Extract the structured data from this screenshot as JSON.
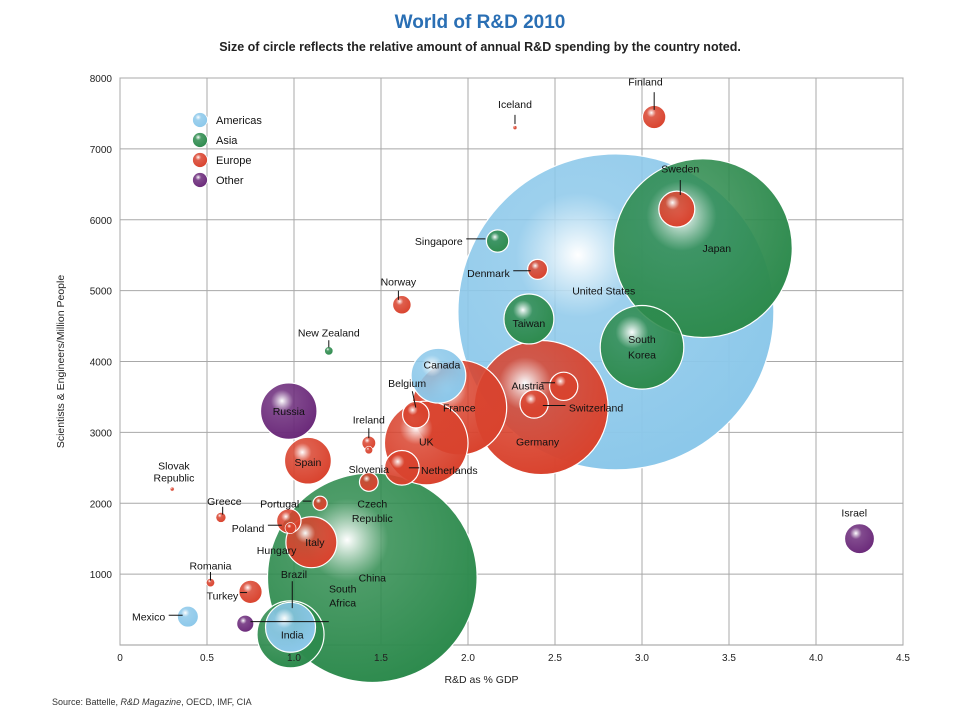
{
  "title": "World of R&D 2010",
  "subtitle": "Size of circle reflects the relative amount of annual R&D spending by the country noted.",
  "source": {
    "prefix": "Source: Battelle, ",
    "italic": "R&D Magazine",
    "suffix": ", OECD, IMF, CIA"
  },
  "colors": {
    "Americas": "#8cc8ea",
    "Asia": "#2e8b4e",
    "Europe": "#d9432e",
    "Other": "#6b2a7a"
  },
  "chart_data": {
    "type": "bubble",
    "title": "World of R&D 2010",
    "xlabel": "R&D as % GDP",
    "ylabel": "Scientists & Engineers/Million People",
    "xlim": [
      0,
      4.5
    ],
    "ylim": [
      0,
      8000
    ],
    "xticks": [
      "0",
      "0.5",
      "1.0",
      "1.5",
      "2.0",
      "2.5",
      "3.0",
      "3.5",
      "4.0",
      "4.5"
    ],
    "yticks": [
      "1000",
      "2000",
      "3000",
      "4000",
      "5000",
      "6000",
      "7000",
      "8000"
    ],
    "grid": true,
    "legend": {
      "position": "top-left",
      "entries": [
        "Americas",
        "Asia",
        "Europe",
        "Other"
      ]
    },
    "points": [
      {
        "name": "United States",
        "group": "Americas",
        "x": 2.85,
        "y": 4700,
        "size": 100
      },
      {
        "name": "Japan",
        "group": "Asia",
        "x": 3.35,
        "y": 5600,
        "size": 32
      },
      {
        "name": "China",
        "group": "Asia",
        "x": 1.45,
        "y": 950,
        "size": 44
      },
      {
        "name": "Germany",
        "group": "Europe",
        "x": 2.42,
        "y": 3350,
        "size": 18
      },
      {
        "name": "France",
        "group": "Europe",
        "x": 1.95,
        "y": 3350,
        "size": 9
      },
      {
        "name": "UK",
        "group": "Europe",
        "x": 1.76,
        "y": 2850,
        "size": 7
      },
      {
        "name": "South Korea",
        "group": "Asia",
        "x": 3.0,
        "y": 4200,
        "size": 7
      },
      {
        "name": "Canada",
        "group": "Americas",
        "x": 1.83,
        "y": 3800,
        "size": 3
      },
      {
        "name": "India",
        "group": "Asia",
        "x": 0.98,
        "y": 150,
        "size": 4.5
      },
      {
        "name": "Brazil",
        "group": "Americas",
        "x": 0.98,
        "y": 250,
        "size": 2.5
      },
      {
        "name": "Russia",
        "group": "Other",
        "x": 0.97,
        "y": 3300,
        "size": 3.2
      },
      {
        "name": "Italy",
        "group": "Europe",
        "x": 1.1,
        "y": 1450,
        "size": 2.6
      },
      {
        "name": "Taiwan",
        "group": "Asia",
        "x": 2.35,
        "y": 4600,
        "size": 2.5
      },
      {
        "name": "Spain",
        "group": "Europe",
        "x": 1.08,
        "y": 2600,
        "size": 2.2
      },
      {
        "name": "Sweden",
        "group": "Europe",
        "x": 3.2,
        "y": 6150,
        "size": 1.3
      },
      {
        "name": "Netherlands",
        "group": "Europe",
        "x": 1.62,
        "y": 2500,
        "size": 1.2
      },
      {
        "name": "Switzerland",
        "group": "Europe",
        "x": 2.38,
        "y": 3400,
        "size": 0.8
      },
      {
        "name": "Austria",
        "group": "Europe",
        "x": 2.55,
        "y": 3650,
        "size": 0.8
      },
      {
        "name": "Belgium",
        "group": "Europe",
        "x": 1.7,
        "y": 3250,
        "size": 0.7
      },
      {
        "name": "Israel",
        "group": "Other",
        "x": 4.25,
        "y": 1500,
        "size": 0.9
      },
      {
        "name": "Finland",
        "group": "Europe",
        "x": 3.07,
        "y": 7450,
        "size": 0.55
      },
      {
        "name": "Turkey",
        "group": "Europe",
        "x": 0.75,
        "y": 750,
        "size": 0.55
      },
      {
        "name": "Poland",
        "group": "Europe",
        "x": 0.97,
        "y": 1750,
        "size": 0.6
      },
      {
        "name": "Mexico",
        "group": "Americas",
        "x": 0.39,
        "y": 400,
        "size": 0.45
      },
      {
        "name": "Denmark",
        "group": "Europe",
        "x": 2.4,
        "y": 5300,
        "size": 0.4
      },
      {
        "name": "Singapore",
        "group": "Asia",
        "x": 2.17,
        "y": 5700,
        "size": 0.5
      },
      {
        "name": "Norway",
        "group": "Europe",
        "x": 1.62,
        "y": 4800,
        "size": 0.35
      },
      {
        "name": "Czech Republic",
        "group": "Europe",
        "x": 1.43,
        "y": 2300,
        "size": 0.35
      },
      {
        "name": "South Africa",
        "group": "Other",
        "x": 0.72,
        "y": 300,
        "size": 0.3
      },
      {
        "name": "Portugal",
        "group": "Europe",
        "x": 1.15,
        "y": 2000,
        "size": 0.2
      },
      {
        "name": "Hungary",
        "group": "Europe",
        "x": 0.98,
        "y": 1650,
        "size": 0.12
      },
      {
        "name": "Ireland",
        "group": "Europe",
        "x": 1.43,
        "y": 2850,
        "size": 0.2
      },
      {
        "name": "Greece",
        "group": "Europe",
        "x": 0.58,
        "y": 1800,
        "size": 0.1
      },
      {
        "name": "Slovenia",
        "group": "Europe",
        "x": 1.43,
        "y": 2750,
        "size": 0.06
      },
      {
        "name": "New Zealand",
        "group": "Asia",
        "x": 1.2,
        "y": 4150,
        "size": 0.07
      },
      {
        "name": "Romania",
        "group": "Europe",
        "x": 0.52,
        "y": 880,
        "size": 0.07
      },
      {
        "name": "Slovak Republic",
        "group": "Europe",
        "x": 0.3,
        "y": 2200,
        "size": 0.015
      },
      {
        "name": "Iceland",
        "group": "Europe",
        "x": 2.27,
        "y": 7300,
        "size": 0.005
      }
    ],
    "labels": [
      {
        "text": "United States",
        "x": 2.78,
        "y": 5000,
        "anchor": "middle"
      },
      {
        "text": "Japan",
        "x": 3.43,
        "y": 5600,
        "anchor": "middle"
      },
      {
        "text": "China",
        "x": 1.45,
        "y": 950,
        "anchor": "middle"
      },
      {
        "text": "Germany",
        "x": 2.4,
        "y": 2870,
        "anchor": "middle"
      },
      {
        "text": "France",
        "x": 1.95,
        "y": 3350,
        "anchor": "middle"
      },
      {
        "text": "UK",
        "x": 1.76,
        "y": 2870,
        "anchor": "middle"
      },
      {
        "text": "South",
        "x": 3.0,
        "y": 4320,
        "anchor": "middle"
      },
      {
        "text": "Korea",
        "x": 3.0,
        "y": 4100,
        "anchor": "middle"
      },
      {
        "text": "Canada",
        "x": 1.85,
        "y": 3960,
        "anchor": "middle"
      },
      {
        "text": "India",
        "x": 0.99,
        "y": 150,
        "anchor": "middle"
      },
      {
        "text": "Brazil",
        "x": 1.0,
        "y": 1000,
        "anchor": "middle"
      },
      {
        "text": "Russia",
        "x": 0.97,
        "y": 3300,
        "anchor": "middle"
      },
      {
        "text": "Italy",
        "x": 1.12,
        "y": 1450,
        "anchor": "middle"
      },
      {
        "text": "Taiwan",
        "x": 2.35,
        "y": 4540,
        "anchor": "middle"
      },
      {
        "text": "Spain",
        "x": 1.08,
        "y": 2580,
        "anchor": "middle"
      },
      {
        "text": "Sweden",
        "x": 3.22,
        "y": 6720,
        "anchor": "middle"
      },
      {
        "text": "Netherlands",
        "x": 1.73,
        "y": 2470,
        "anchor": "start"
      },
      {
        "text": "Switzerland",
        "x": 2.58,
        "y": 3350,
        "anchor": "start"
      },
      {
        "text": "Austria",
        "x": 2.25,
        "y": 3660,
        "anchor": "start"
      },
      {
        "text": "Belgium",
        "x": 1.65,
        "y": 3700,
        "anchor": "middle"
      },
      {
        "text": "Israel",
        "x": 4.22,
        "y": 1870,
        "anchor": "middle"
      },
      {
        "text": "Finland",
        "x": 3.02,
        "y": 7950,
        "anchor": "middle"
      },
      {
        "text": "Turkey",
        "x": 0.68,
        "y": 700,
        "anchor": "end"
      },
      {
        "text": "Poland",
        "x": 0.83,
        "y": 1650,
        "anchor": "end"
      },
      {
        "text": "Mexico",
        "x": 0.26,
        "y": 400,
        "anchor": "end"
      },
      {
        "text": "Denmark",
        "x": 2.24,
        "y": 5250,
        "anchor": "end"
      },
      {
        "text": "Singapore",
        "x": 1.97,
        "y": 5700,
        "anchor": "end"
      },
      {
        "text": "Norway",
        "x": 1.6,
        "y": 5130,
        "anchor": "middle"
      },
      {
        "text": "Czech",
        "x": 1.45,
        "y": 2000,
        "anchor": "middle"
      },
      {
        "text": "Republic",
        "x": 1.45,
        "y": 1790,
        "anchor": "middle"
      },
      {
        "text": "South",
        "x": 1.28,
        "y": 800,
        "anchor": "middle"
      },
      {
        "text": "Africa",
        "x": 1.28,
        "y": 600,
        "anchor": "middle"
      },
      {
        "text": "Portugal",
        "x": 1.03,
        "y": 2000,
        "anchor": "end"
      },
      {
        "text": "Hungary",
        "x": 0.9,
        "y": 1340,
        "anchor": "middle"
      },
      {
        "text": "Ireland",
        "x": 1.43,
        "y": 3180,
        "anchor": "middle"
      },
      {
        "text": "Greece",
        "x": 0.6,
        "y": 2030,
        "anchor": "middle"
      },
      {
        "text": "Slovenia",
        "x": 1.43,
        "y": 2480,
        "anchor": "middle"
      },
      {
        "text": "New Zealand",
        "x": 1.2,
        "y": 4410,
        "anchor": "middle"
      },
      {
        "text": "Romania",
        "x": 0.52,
        "y": 1120,
        "anchor": "middle"
      },
      {
        "text": "Slovak",
        "x": 0.31,
        "y": 2530,
        "anchor": "middle"
      },
      {
        "text": "Republic",
        "x": 0.31,
        "y": 2360,
        "anchor": "middle"
      },
      {
        "text": "Iceland",
        "x": 2.27,
        "y": 7630,
        "anchor": "middle"
      }
    ],
    "leaders": [
      {
        "name": "Finland",
        "x1": 3.07,
        "y1": 7800,
        "x2": 3.07,
        "y2": 7550
      },
      {
        "name": "Iceland",
        "x1": 2.27,
        "y1": 7480,
        "x2": 2.27,
        "y2": 7350
      },
      {
        "name": "Sweden",
        "x1": 3.22,
        "y1": 6560,
        "x2": 3.22,
        "y2": 6350
      },
      {
        "name": "Singapore",
        "x1": 1.99,
        "y1": 5730,
        "x2": 2.1,
        "y2": 5730
      },
      {
        "name": "Denmark",
        "x1": 2.26,
        "y1": 5280,
        "x2": 2.36,
        "y2": 5280
      },
      {
        "name": "Norway",
        "x1": 1.6,
        "y1": 5000,
        "x2": 1.6,
        "y2": 4870
      },
      {
        "name": "New Zealand",
        "x1": 1.2,
        "y1": 4300,
        "x2": 1.2,
        "y2": 4200
      },
      {
        "name": "Austria",
        "x1": 2.42,
        "y1": 3700,
        "x2": 2.5,
        "y2": 3700
      },
      {
        "name": "Switzerland",
        "x1": 2.43,
        "y1": 3380,
        "x2": 2.56,
        "y2": 3380
      },
      {
        "name": "Belgium",
        "x1": 1.68,
        "y1": 3580,
        "x2": 1.7,
        "y2": 3350
      },
      {
        "name": "Ireland",
        "x1": 1.43,
        "y1": 3060,
        "x2": 1.43,
        "y2": 2920
      },
      {
        "name": "Netherlands",
        "x1": 1.66,
        "y1": 2500,
        "x2": 1.72,
        "y2": 2500
      },
      {
        "name": "Portugal",
        "x1": 1.05,
        "y1": 2030,
        "x2": 1.1,
        "y2": 2030
      },
      {
        "name": "Greece",
        "x1": 0.59,
        "y1": 1950,
        "x2": 0.59,
        "y2": 1840
      },
      {
        "name": "Poland",
        "x1": 0.85,
        "y1": 1690,
        "x2": 0.93,
        "y2": 1690
      },
      {
        "name": "Romania",
        "x1": 0.52,
        "y1": 1030,
        "x2": 0.52,
        "y2": 910
      },
      {
        "name": "Turkey",
        "x1": 0.69,
        "y1": 740,
        "x2": 0.73,
        "y2": 740
      },
      {
        "name": "Brazil",
        "x1": 0.99,
        "y1": 900,
        "x2": 0.99,
        "y2": 520
      },
      {
        "name": "Mexico",
        "x1": 0.28,
        "y1": 420,
        "x2": 0.36,
        "y2": 420
      },
      {
        "name": "South Africa",
        "x1": 0.75,
        "y1": 330,
        "x2": 1.2,
        "y2": 330
      }
    ]
  }
}
